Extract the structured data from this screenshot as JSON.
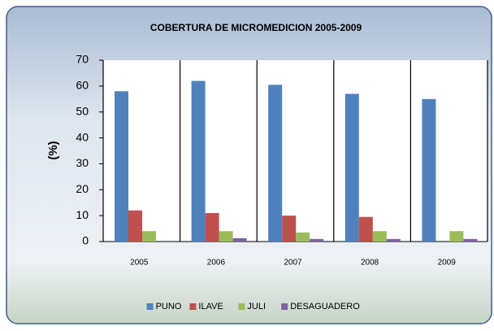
{
  "chart_data": {
    "type": "bar",
    "title": "COBERTURA DE MICROMEDICION 2005-2009",
    "y_label": "(%)",
    "categories": [
      "2005",
      "2006",
      "2007",
      "2008",
      "2009"
    ],
    "series": [
      {
        "name": "PUNO",
        "color": "#4f81bd",
        "values": [
          58,
          62,
          60.5,
          57,
          55
        ]
      },
      {
        "name": "ILAVE",
        "color": "#c0504d",
        "values": [
          12,
          11,
          10,
          9.5,
          0
        ]
      },
      {
        "name": "JULI",
        "color": "#9bbb59",
        "values": [
          4,
          4,
          3.5,
          4,
          4
        ]
      },
      {
        "name": "DESAGUADERO",
        "color": "#8064a2",
        "values": [
          0,
          1.3,
          1,
          1,
          1
        ]
      }
    ],
    "ylim": [
      0,
      70
    ],
    "yticks": [
      0,
      10,
      20,
      30,
      40,
      50,
      60,
      70
    ],
    "legend": "bottom"
  }
}
